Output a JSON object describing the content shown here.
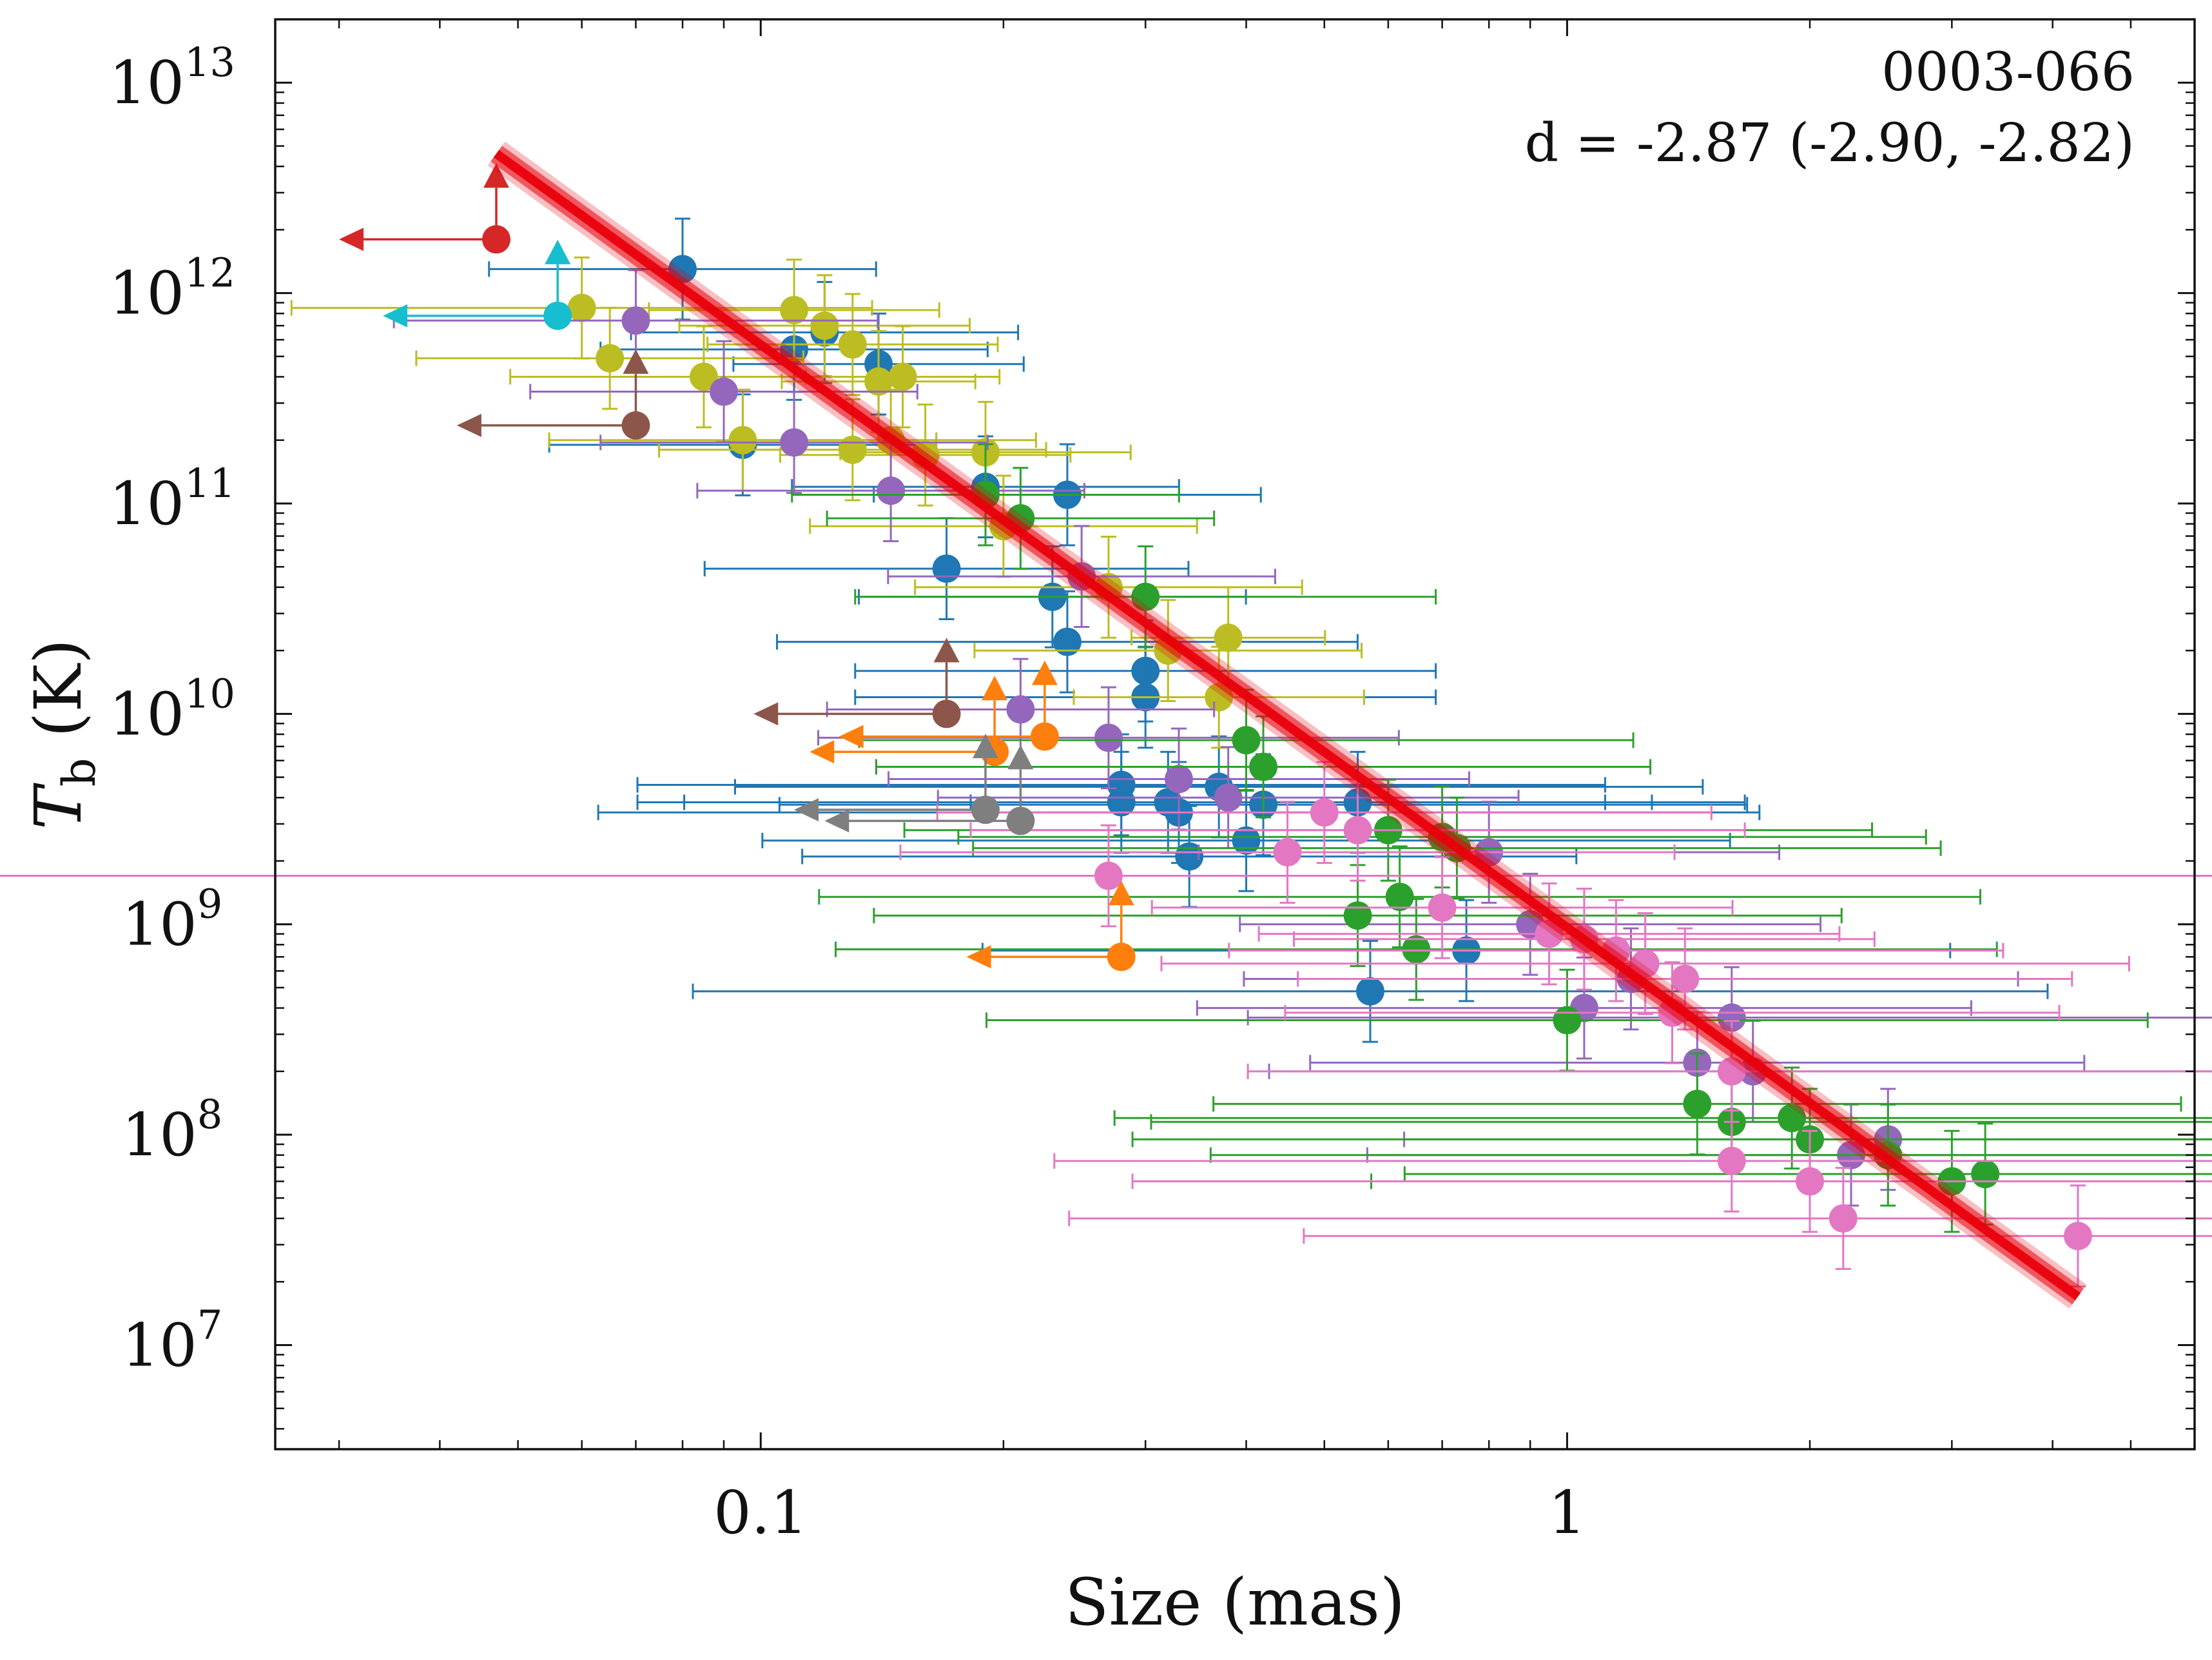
{
  "chart_data": {
    "type": "scatter",
    "title": "",
    "annotation": {
      "source": "0003-066",
      "fit": "d = -2.87 (-2.90, -2.82)"
    },
    "xlabel": "Size (mas)",
    "ylabel": {
      "symbol": "T",
      "subscript": "b",
      "unit": " (K)"
    },
    "xscale": "log",
    "yscale": "log",
    "xlim": [
      0.025,
      6.0
    ],
    "ylim": [
      3200000.0,
      20000000000000.0
    ],
    "x_ticks": [
      {
        "value": 0.1,
        "label": "0.1"
      },
      {
        "value": 1,
        "label": "1"
      }
    ],
    "y_ticks": [
      {
        "value": 10000000.0,
        "mant": "10",
        "exp": "7"
      },
      {
        "value": 100000000.0,
        "mant": "10",
        "exp": "8"
      },
      {
        "value": 1000000000.0,
        "mant": "10",
        "exp": "9"
      },
      {
        "value": 10000000000.0,
        "mant": "10",
        "exp": "10"
      },
      {
        "value": 100000000000.0,
        "mant": "10",
        "exp": "11"
      },
      {
        "value": 1000000000000.0,
        "mant": "10",
        "exp": "12"
      },
      {
        "value": 10000000000000.0,
        "mant": "10",
        "exp": "13"
      }
    ],
    "legend": null,
    "fit_line": {
      "color": "#e8000b",
      "x": [
        0.047,
        4.3
      ],
      "y": [
        4600000000000.0,
        17000000.0
      ],
      "slope": -2.87
    },
    "series": [
      {
        "name": "blue",
        "color": "#1f77b4",
        "points": [
          [
            0.08,
            1300000000000.0,
            0.02
          ],
          [
            0.11,
            540000000000.0,
            0.02
          ],
          [
            0.12,
            650000000000.0,
            0.02
          ],
          [
            0.14,
            460000000000.0,
            0.015
          ],
          [
            0.095,
            190000000000.0,
            0.02
          ],
          [
            0.19,
            120000000000.0,
            0.02
          ],
          [
            0.24,
            110000000000.0,
            0.02
          ],
          [
            0.17,
            49000000000.0,
            0.025
          ],
          [
            0.23,
            36000000000.0,
            0.02
          ],
          [
            0.24,
            22000000000.0,
            0.03
          ],
          [
            0.3,
            16000000000.0,
            0.03
          ],
          [
            0.3,
            12000000000.0,
            0.03
          ],
          [
            0.28,
            4600000000.0,
            0.05
          ],
          [
            0.28,
            3800000000.0,
            0.05
          ],
          [
            0.32,
            3800000000.0,
            0.05
          ],
          [
            0.33,
            3400000000.0,
            0.06
          ],
          [
            0.37,
            4500000000.0,
            0.05
          ],
          [
            0.42,
            3700000000.0,
            0.05
          ],
          [
            0.4,
            2500000000.0,
            0.05
          ],
          [
            0.34,
            2100000000.0,
            0.04
          ],
          [
            0.55,
            3800000000.0,
            0.04
          ],
          [
            0.75,
            750000000.0,
            0.05
          ],
          [
            0.57,
            480000000.0,
            0.07
          ]
        ]
      },
      {
        "name": "olive",
        "color": "#bcbd22",
        "points": [
          [
            0.06,
            850000000000.0,
            0.03
          ],
          [
            0.065,
            490000000000.0,
            0.02
          ],
          [
            0.085,
            400000000000.0,
            0.02
          ],
          [
            0.11,
            830000000000.0,
            0.015
          ],
          [
            0.12,
            700000000000.0,
            0.015
          ],
          [
            0.13,
            570000000000.0,
            0.015
          ],
          [
            0.14,
            380000000000.0,
            0.01
          ],
          [
            0.15,
            400000000000.0,
            0.01
          ],
          [
            0.095,
            200000000000.0,
            0.02
          ],
          [
            0.13,
            180000000000.0,
            0.02
          ],
          [
            0.145,
            200000000000.0,
            0.015
          ],
          [
            0.16,
            170000000000.0,
            0.015
          ],
          [
            0.19,
            175000000000.0,
            0.015
          ],
          [
            0.2,
            78000000000.0,
            0.02
          ],
          [
            0.27,
            40000000000.0,
            0.02
          ],
          [
            0.32,
            20000000000.0,
            0.02
          ],
          [
            0.38,
            23000000000.0,
            0.01
          ],
          [
            0.37,
            12000000000.0,
            0.015
          ]
        ]
      },
      {
        "name": "purple",
        "color": "#9467bd",
        "points": [
          [
            0.07,
            740000000000.0,
            0.025
          ],
          [
            0.09,
            340000000000.0,
            0.02
          ],
          [
            0.11,
            195000000000.0,
            0.02
          ],
          [
            0.145,
            115000000000.0,
            0.02
          ],
          [
            0.25,
            45000000000.0,
            0.02
          ],
          [
            0.21,
            10500000000.0,
            0.02
          ],
          [
            0.27,
            7700000000.0,
            0.03
          ],
          [
            0.33,
            4900000000.0,
            0.03
          ],
          [
            0.38,
            4000000000.0,
            0.03
          ],
          [
            0.8,
            2200000000.0,
            0.03
          ],
          [
            0.9,
            1000000000.0,
            0.03
          ],
          [
            1.05,
            400000000.0,
            0.04
          ],
          [
            1.2,
            550000000.0,
            0.04
          ],
          [
            1.6,
            360000000.0,
            0.05
          ],
          [
            1.45,
            220000000.0,
            0.04
          ],
          [
            1.7,
            200000000.0,
            0.05
          ],
          [
            2.25,
            80000000.0,
            0.05
          ],
          [
            2.5,
            95000000.0,
            0.05
          ]
        ]
      },
      {
        "name": "green",
        "color": "#2ca02c",
        "points": [
          [
            0.19,
            110000000000.0,
            0.02
          ],
          [
            0.21,
            85000000000.0,
            0.02
          ],
          [
            0.3,
            36000000000.0,
            0.03
          ],
          [
            0.4,
            7500000000.0,
            0.04
          ],
          [
            0.42,
            5600000000.0,
            0.04
          ],
          [
            0.6,
            2800000000.0,
            0.05
          ],
          [
            0.7,
            2600000000.0,
            0.05
          ],
          [
            0.73,
            2300000000.0,
            0.05
          ],
          [
            0.55,
            1100000000.0,
            0.05
          ],
          [
            0.62,
            1350000000.0,
            0.06
          ],
          [
            0.65,
            760000000.0,
            0.06
          ],
          [
            1.0,
            350000000.0,
            0.06
          ],
          [
            1.45,
            140000000.0,
            0.05
          ],
          [
            1.6,
            115000000.0,
            0.06
          ],
          [
            1.9,
            120000000.0,
            0.07
          ],
          [
            2.0,
            95000000.0,
            0.07
          ],
          [
            2.5,
            80000000.0,
            0.07
          ],
          [
            3.0,
            60000000.0,
            0.06
          ],
          [
            3.3,
            65000000.0,
            0.06
          ]
        ]
      },
      {
        "name": "pink",
        "color": "#e377c2",
        "points": [
          [
            0.27,
            1700000000.0,
            0.12
          ],
          [
            0.45,
            2200000000.0,
            0.04
          ],
          [
            0.5,
            3400000000.0,
            0.04
          ],
          [
            0.55,
            2800000000.0,
            0.04
          ],
          [
            0.7,
            1200000000.0,
            0.03
          ],
          [
            0.95,
            900000000.0,
            0.03
          ],
          [
            1.05,
            850000000.0,
            0.03
          ],
          [
            1.15,
            750000000.0,
            0.04
          ],
          [
            1.25,
            650000000.0,
            0.05
          ],
          [
            1.4,
            550000000.0,
            0.04
          ],
          [
            1.35,
            380000000.0,
            0.04
          ],
          [
            1.6,
            200000000.0,
            0.05
          ],
          [
            1.6,
            75000000.0,
            0.07
          ],
          [
            2.0,
            60000000.0,
            0.07
          ],
          [
            2.2,
            40000000.0,
            0.08
          ],
          [
            4.3,
            33000000.0,
            0.08
          ]
        ]
      }
    ],
    "upper_limits": [
      {
        "color": "#d62728",
        "x": 0.047,
        "y": 1800000000000.0,
        "arrow_to_x": 0.03,
        "up": true
      },
      {
        "color": "#17becf",
        "x": 0.056,
        "y": 780000000000.0,
        "arrow_to_x": 0.034,
        "up": true
      },
      {
        "color": "#8c564b",
        "x": 0.07,
        "y": 235000000000.0,
        "arrow_to_x": 0.042,
        "up": true
      },
      {
        "color": "#8c564b",
        "x": 0.17,
        "y": 10000000000.0,
        "arrow_to_x": 0.098,
        "up": true
      },
      {
        "color": "#ff7f0e",
        "x": 0.195,
        "y": 6600000000.0,
        "arrow_to_x": 0.115,
        "up": true
      },
      {
        "color": "#ff7f0e",
        "x": 0.225,
        "y": 7800000000.0,
        "arrow_to_x": 0.125,
        "up": true
      },
      {
        "color": "#ff7f0e",
        "x": 0.28,
        "y": 700000000.0,
        "arrow_to_x": 0.18,
        "up": true
      },
      {
        "color": "#7f7f7f",
        "x": 0.19,
        "y": 3500000000.0,
        "arrow_to_x": 0.11,
        "up": true
      },
      {
        "color": "#7f7f7f",
        "x": 0.21,
        "y": 3100000000.0,
        "arrow_to_x": 0.12,
        "up": true
      }
    ]
  }
}
